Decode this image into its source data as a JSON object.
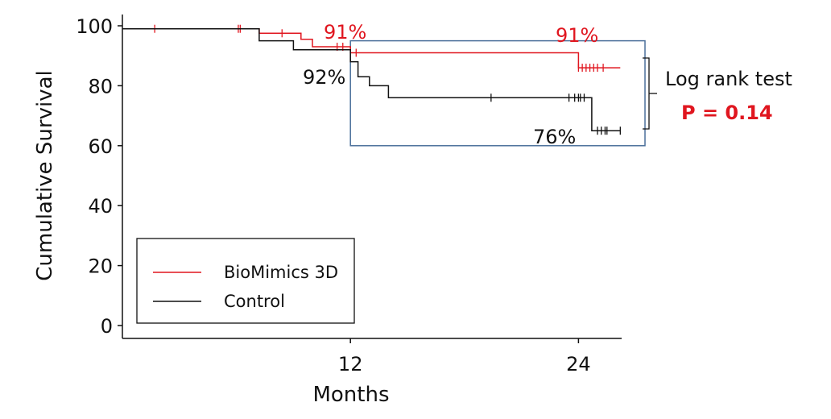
{
  "chart_data": {
    "type": "line",
    "subtype": "kaplan-meier",
    "xlabel": "Months",
    "ylabel": "Cumulative Survival",
    "xlim": [
      0,
      26.5
    ],
    "ylim": [
      0,
      100
    ],
    "x_ticks": [
      12,
      24
    ],
    "y_ticks": [
      0,
      20,
      40,
      60,
      80,
      100
    ],
    "grid": false,
    "legend_position": "bottom-left",
    "series": [
      {
        "name": "BioMimics 3D",
        "color": "#e0161f",
        "steps": [
          [
            0,
            99
          ],
          [
            7.2,
            99
          ],
          [
            7.2,
            97.5
          ],
          [
            9.4,
            97.5
          ],
          [
            9.4,
            95.5
          ],
          [
            10.0,
            95.5
          ],
          [
            10.0,
            93
          ],
          [
            12.0,
            93
          ],
          [
            12.0,
            91
          ],
          [
            24.0,
            91
          ],
          [
            24.0,
            86
          ],
          [
            26.2,
            86
          ]
        ],
        "censor_x": [
          1.7,
          6.1,
          6.2,
          8.4,
          11.3,
          11.6,
          12.3,
          24.0,
          24.2,
          24.4,
          24.6,
          24.8,
          25.0,
          25.3
        ]
      },
      {
        "name": "Control",
        "color": "#111111",
        "steps": [
          [
            0,
            99
          ],
          [
            7.2,
            99
          ],
          [
            7.2,
            95
          ],
          [
            9.0,
            95
          ],
          [
            9.0,
            92
          ],
          [
            12.0,
            92
          ],
          [
            12.0,
            88
          ],
          [
            12.4,
            88
          ],
          [
            12.4,
            83
          ],
          [
            13.0,
            83
          ],
          [
            13.0,
            80
          ],
          [
            14.0,
            80
          ],
          [
            14.0,
            76
          ],
          [
            24.7,
            76
          ],
          [
            24.7,
            65
          ],
          [
            26.2,
            65
          ]
        ],
        "censor_x": [
          19.4,
          23.5,
          23.8,
          24.0,
          24.1,
          24.3,
          25.0,
          25.2,
          25.4,
          25.5,
          26.2
        ]
      }
    ],
    "annotations": [
      {
        "text": "91%",
        "color": "#e0161f",
        "x": 12.0,
        "y": 91
      },
      {
        "text": "91%",
        "color": "#e0161f",
        "x": 24.0,
        "y": 91
      },
      {
        "text": "92%",
        "color": "#111111",
        "x": 12.0,
        "y": 92
      },
      {
        "text": "76%",
        "color": "#111111",
        "x": 24.0,
        "y": 76
      }
    ],
    "highlight_box": {
      "x": [
        12.0,
        27.5
      ],
      "y": [
        60,
        95
      ],
      "color": "#4a6f9a"
    },
    "statistics": {
      "test_label": "Log rank test",
      "p_value_label": "P = 0.14",
      "p_value": 0.14,
      "p_value_color": "#e0161f"
    }
  }
}
